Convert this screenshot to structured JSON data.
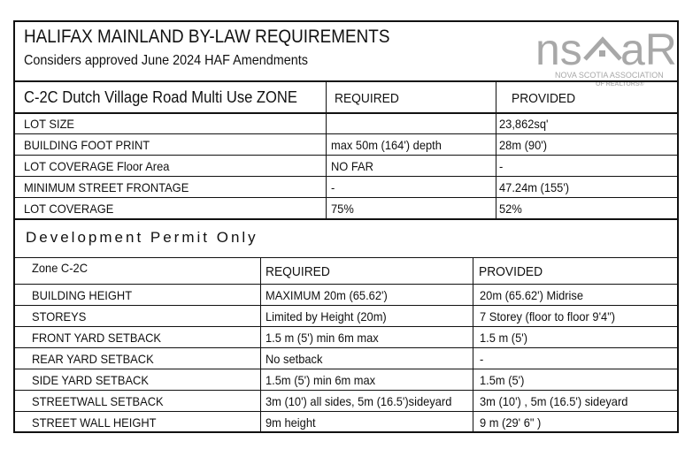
{
  "header": {
    "title": "HALIFAX MAINLAND BY-LAW REQUIREMENTS",
    "subtitle": "Considers approved June 2024 HAF Amendments"
  },
  "logo": {
    "text": "nsar",
    "tagline1": "NOVA SCOTIA ASSOCIATION",
    "tagline2": "OF REALTORS®",
    "color": "#a8a8a8"
  },
  "table1": {
    "headers": [
      "C-2C Dutch Village Road Multi Use  ZONE",
      "REQUIRED",
      "PROVIDED"
    ],
    "rows": [
      [
        "LOT SIZE",
        "",
        "23,862sq'"
      ],
      [
        "BUILDING FOOT PRINT",
        "max 50m (164') depth",
        "28m (90')"
      ],
      [
        "LOT COVERAGE Floor Area",
        "NO FAR",
        "-"
      ],
      [
        "MINIMUM STREET FRONTAGE",
        "-",
        "47.24m (155')"
      ],
      [
        "LOT COVERAGE",
        "75%",
        "52%"
      ]
    ]
  },
  "section2": {
    "title": "Development Permit Only"
  },
  "table2": {
    "headers": [
      "Zone C-2C",
      "REQUIRED",
      "PROVIDED"
    ],
    "rows": [
      [
        "BUILDING HEIGHT",
        "MAXIMUM 20m (65.62')",
        "20m  (65.62')  Midrise"
      ],
      [
        "STOREYS",
        "Limited by Height (20m)",
        "7  Storey  (floor to floor 9'4\")"
      ],
      [
        "FRONT YARD  SETBACK",
        "1.5 m (5')  min  6m max",
        "1.5 m (5')"
      ],
      [
        "REAR YARD SETBACK",
        "No setback",
        "-"
      ],
      [
        "SIDE YARD SETBACK",
        "1.5m (5')  min 6m max",
        "1.5m (5')"
      ],
      [
        "STREETWALL SETBACK",
        "3m (10') all sides, 5m (16.5')sideyard",
        "3m (10') , 5m (16.5') sideyard"
      ],
      [
        "STREET WALL HEIGHT",
        "9m height",
        "9 m (29' 6\" )"
      ]
    ]
  }
}
